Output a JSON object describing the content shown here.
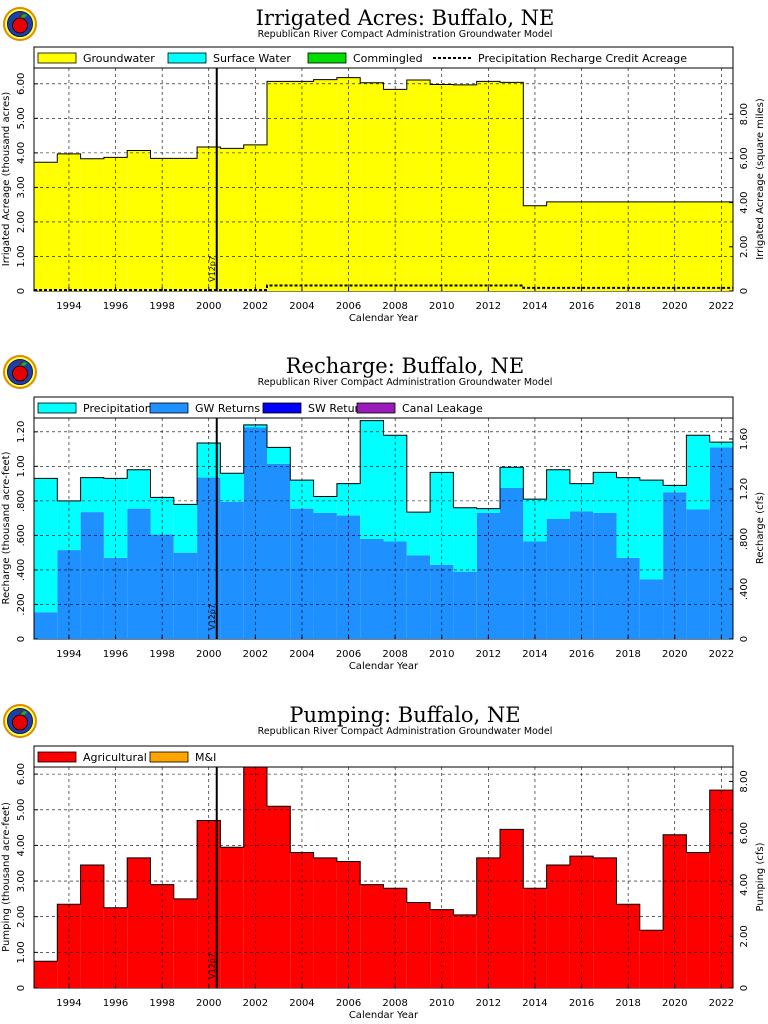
{
  "chart_data": [
    {
      "type": "bar",
      "title": "Irrigated Acres: Buffalo, NE",
      "subtitle": "Republican River Compact Administration Groundwater Model",
      "xlabel": "Calendar Year",
      "ylabel": "Irrigated Acreage (thousand acres)",
      "y2label": "Irrigated Acreage (square miles)",
      "ylim": [
        0,
        6.4
      ],
      "y2lim": [
        0,
        10.0
      ],
      "yticks": [
        "0",
        "1.00",
        "2.00",
        "3.00",
        "4.00",
        "5.00",
        "6.00"
      ],
      "y2ticks": [
        "0",
        "2.00",
        "4.00",
        "6.00",
        "8.00"
      ],
      "xticks": [
        "1994",
        "1996",
        "1998",
        "2000",
        "2002",
        "2004",
        "2006",
        "2008",
        "2010",
        "2012",
        "2014",
        "2016",
        "2018",
        "2020",
        "2022"
      ],
      "marker_label": "V12p7",
      "marker_year": 2001,
      "legend_position": "top",
      "grid": true,
      "colors": {
        "Groundwater": "#ffff00",
        "Surface Water": "#00ffff",
        "Commingled": "#00dd00"
      },
      "legend": [
        "Groundwater",
        "Surface Water",
        "Commingled",
        "Precipitation Recharge Credit Acreage"
      ],
      "years": [
        1993,
        1994,
        1995,
        1996,
        1997,
        1998,
        1999,
        2000,
        2001,
        2002,
        2003,
        2004,
        2005,
        2006,
        2007,
        2008,
        2009,
        2010,
        2011,
        2012,
        2013,
        2014,
        2015,
        2016,
        2017,
        2018,
        2019,
        2020,
        2021,
        2022
      ],
      "series": [
        {
          "name": "Groundwater",
          "values": [
            3.73,
            3.97,
            3.83,
            3.87,
            4.07,
            3.84,
            3.84,
            4.17,
            4.13,
            4.23,
            6.07,
            6.07,
            6.12,
            6.18,
            6.03,
            5.84,
            6.11,
            5.98,
            5.97,
            6.07,
            6.04,
            2.47,
            2.58,
            2.58,
            2.58,
            2.58,
            2.58,
            2.58,
            2.58,
            2.58
          ]
        },
        {
          "name": "Surface Water",
          "values": [
            0,
            0,
            0,
            0,
            0,
            0,
            0,
            0,
            0,
            0,
            0,
            0,
            0,
            0,
            0,
            0,
            0,
            0,
            0,
            0,
            0,
            0,
            0,
            0,
            0,
            0,
            0,
            0,
            0,
            0
          ]
        },
        {
          "name": "Commingled",
          "values": [
            0,
            0,
            0,
            0,
            0,
            0,
            0,
            0,
            0,
            0,
            0,
            0,
            0,
            0,
            0,
            0,
            0,
            0,
            0,
            0,
            0,
            0,
            0,
            0,
            0,
            0,
            0,
            0,
            0,
            0
          ]
        }
      ],
      "line_series": {
        "name": "Precipitation Recharge Credit Acreage",
        "values": [
          0.03,
          0.03,
          0.03,
          0.03,
          0.03,
          0.03,
          0.03,
          0.03,
          0.03,
          0.03,
          0.16,
          0.16,
          0.16,
          0.16,
          0.16,
          0.16,
          0.16,
          0.16,
          0.16,
          0.16,
          0.16,
          0.09,
          0.09,
          0.09,
          0.09,
          0.09,
          0.09,
          0.09,
          0.09,
          0.09
        ]
      }
    },
    {
      "type": "bar",
      "title": "Recharge: Buffalo, NE",
      "subtitle": "Republican River Compact Administration Groundwater Model",
      "xlabel": "Calendar Year",
      "ylabel": "Recharge (thousand acre-feet)",
      "y2label": "Recharge (cfs)",
      "ylim": [
        0,
        1.28
      ],
      "y2lim": [
        0,
        1.768
      ],
      "yticks": [
        "0",
        ".200",
        ".400",
        ".600",
        ".800",
        "1.00",
        "1.20"
      ],
      "y2ticks": [
        "0",
        ".400",
        ".800",
        "1.20",
        "1.60"
      ],
      "xticks": [
        "1994",
        "1996",
        "1998",
        "2000",
        "2002",
        "2004",
        "2006",
        "2008",
        "2010",
        "2012",
        "2014",
        "2016",
        "2018",
        "2020",
        "2022"
      ],
      "marker_label": "V12p7",
      "marker_year": 2001,
      "legend_position": "top",
      "grid": true,
      "colors": {
        "Precipitation": "#00ffff",
        "GW Returns": "#1e90ff",
        "SW Returns": "#0000ff",
        "Canal Leakage": "#9a1aba"
      },
      "legend": [
        "Precipitation",
        "GW Returns",
        "SW Returns",
        "Canal Leakage"
      ],
      "years": [
        1993,
        1994,
        1995,
        1996,
        1997,
        1998,
        1999,
        2000,
        2001,
        2002,
        2003,
        2004,
        2005,
        2006,
        2007,
        2008,
        2009,
        2010,
        2011,
        2012,
        2013,
        2014,
        2015,
        2016,
        2017,
        2018,
        2019,
        2020,
        2021,
        2022
      ],
      "series": [
        {
          "name": "GW Returns",
          "values": [
            0.155,
            0.515,
            0.735,
            0.47,
            0.755,
            0.605,
            0.5,
            0.935,
            0.795,
            1.225,
            1.015,
            0.755,
            0.73,
            0.715,
            0.58,
            0.565,
            0.485,
            0.43,
            0.39,
            0.73,
            0.875,
            0.565,
            0.695,
            0.74,
            0.73,
            0.47,
            0.345,
            0.85,
            0.75,
            1.11
          ]
        },
        {
          "name": "Precipitation",
          "values": [
            0.775,
            0.285,
            0.2,
            0.46,
            0.225,
            0.215,
            0.28,
            0.2,
            0.165,
            0.015,
            0.095,
            0.165,
            0.095,
            0.185,
            0.685,
            0.615,
            0.25,
            0.535,
            0.37,
            0.025,
            0.12,
            0.245,
            0.285,
            0.16,
            0.235,
            0.465,
            0.575,
            0.04,
            0.43,
            0.03
          ]
        },
        {
          "name": "SW Returns",
          "values": [
            0,
            0,
            0,
            0,
            0,
            0,
            0,
            0,
            0,
            0,
            0,
            0,
            0,
            0,
            0,
            0,
            0,
            0,
            0,
            0,
            0,
            0,
            0,
            0,
            0,
            0,
            0,
            0,
            0,
            0
          ]
        },
        {
          "name": "Canal Leakage",
          "values": [
            0,
            0,
            0,
            0,
            0,
            0,
            0,
            0,
            0,
            0,
            0,
            0,
            0,
            0,
            0,
            0,
            0,
            0,
            0,
            0,
            0,
            0,
            0,
            0,
            0,
            0,
            0,
            0,
            0,
            0
          ]
        }
      ]
    },
    {
      "type": "bar",
      "title": "Pumping: Buffalo, NE",
      "subtitle": "Republican River Compact Administration Groundwater Model",
      "xlabel": "Calendar Year",
      "ylabel": "Pumping (thousand acre-feet)",
      "y2label": "Pumping (cfs)",
      "ylim": [
        0,
        6.2
      ],
      "y2lim": [
        0,
        8.56
      ],
      "yticks": [
        "0",
        "1.00",
        "2.00",
        "3.00",
        "4.00",
        "5.00",
        "6.00"
      ],
      "y2ticks": [
        "0",
        "2.00",
        "4.00",
        "6.00",
        "8.00"
      ],
      "xticks": [
        "1994",
        "1996",
        "1998",
        "2000",
        "2002",
        "2004",
        "2006",
        "2008",
        "2010",
        "2012",
        "2014",
        "2016",
        "2018",
        "2020",
        "2022"
      ],
      "marker_label": "V12p7",
      "marker_year": 2001,
      "legend_position": "top",
      "grid": true,
      "colors": {
        "Agricultural": "#ff0000",
        "M&I": "#ffa500"
      },
      "legend": [
        "Agricultural",
        "M&I"
      ],
      "years": [
        1993,
        1994,
        1995,
        1996,
        1997,
        1998,
        1999,
        2000,
        2001,
        2002,
        2003,
        2004,
        2005,
        2006,
        2007,
        2008,
        2009,
        2010,
        2011,
        2012,
        2013,
        2014,
        2015,
        2016,
        2017,
        2018,
        2019,
        2020,
        2021,
        2022
      ],
      "series": [
        {
          "name": "Agricultural",
          "values": [
            0.75,
            2.35,
            3.45,
            2.25,
            3.65,
            2.9,
            2.5,
            4.7,
            3.95,
            6.2,
            5.1,
            3.8,
            3.65,
            3.55,
            2.9,
            2.8,
            2.4,
            2.2,
            2.05,
            3.65,
            4.45,
            2.8,
            3.45,
            3.7,
            3.65,
            2.35,
            1.62,
            4.3,
            3.8,
            5.55
          ]
        },
        {
          "name": "M&I",
          "values": [
            0,
            0,
            0,
            0,
            0,
            0,
            0,
            0,
            0,
            0,
            0,
            0,
            0,
            0,
            0,
            0,
            0,
            0,
            0,
            0,
            0,
            0,
            0,
            0,
            0,
            0,
            0,
            0,
            0,
            0
          ]
        }
      ]
    }
  ]
}
